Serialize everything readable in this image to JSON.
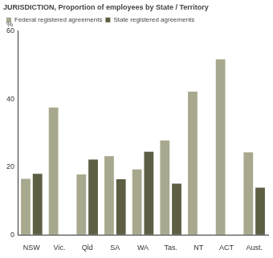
{
  "chart_data": {
    "type": "bar",
    "title": "JURISDICTION, Proportion of employees by State / Territory",
    "ylabel": "%",
    "categories": [
      "NSW",
      "Vic.",
      "Qld",
      "SA",
      "WA",
      "Tas.",
      "NT",
      "ACT",
      "Aust."
    ],
    "series": [
      {
        "name": "Federal registered agreements",
        "color": "#a8a88e",
        "values": [
          16.5,
          37.5,
          17.8,
          23.2,
          19.3,
          27.8,
          42.2,
          51.7,
          24.3
        ]
      },
      {
        "name": "State registered agreements",
        "color": "#5e5e44",
        "values": [
          18.0,
          null,
          22.2,
          16.4,
          24.5,
          15.1,
          null,
          null,
          13.9
        ]
      }
    ],
    "ylim": [
      0,
      60
    ],
    "yticks": [
      0,
      20,
      40,
      60
    ],
    "grid": true,
    "legend": "upper left"
  }
}
